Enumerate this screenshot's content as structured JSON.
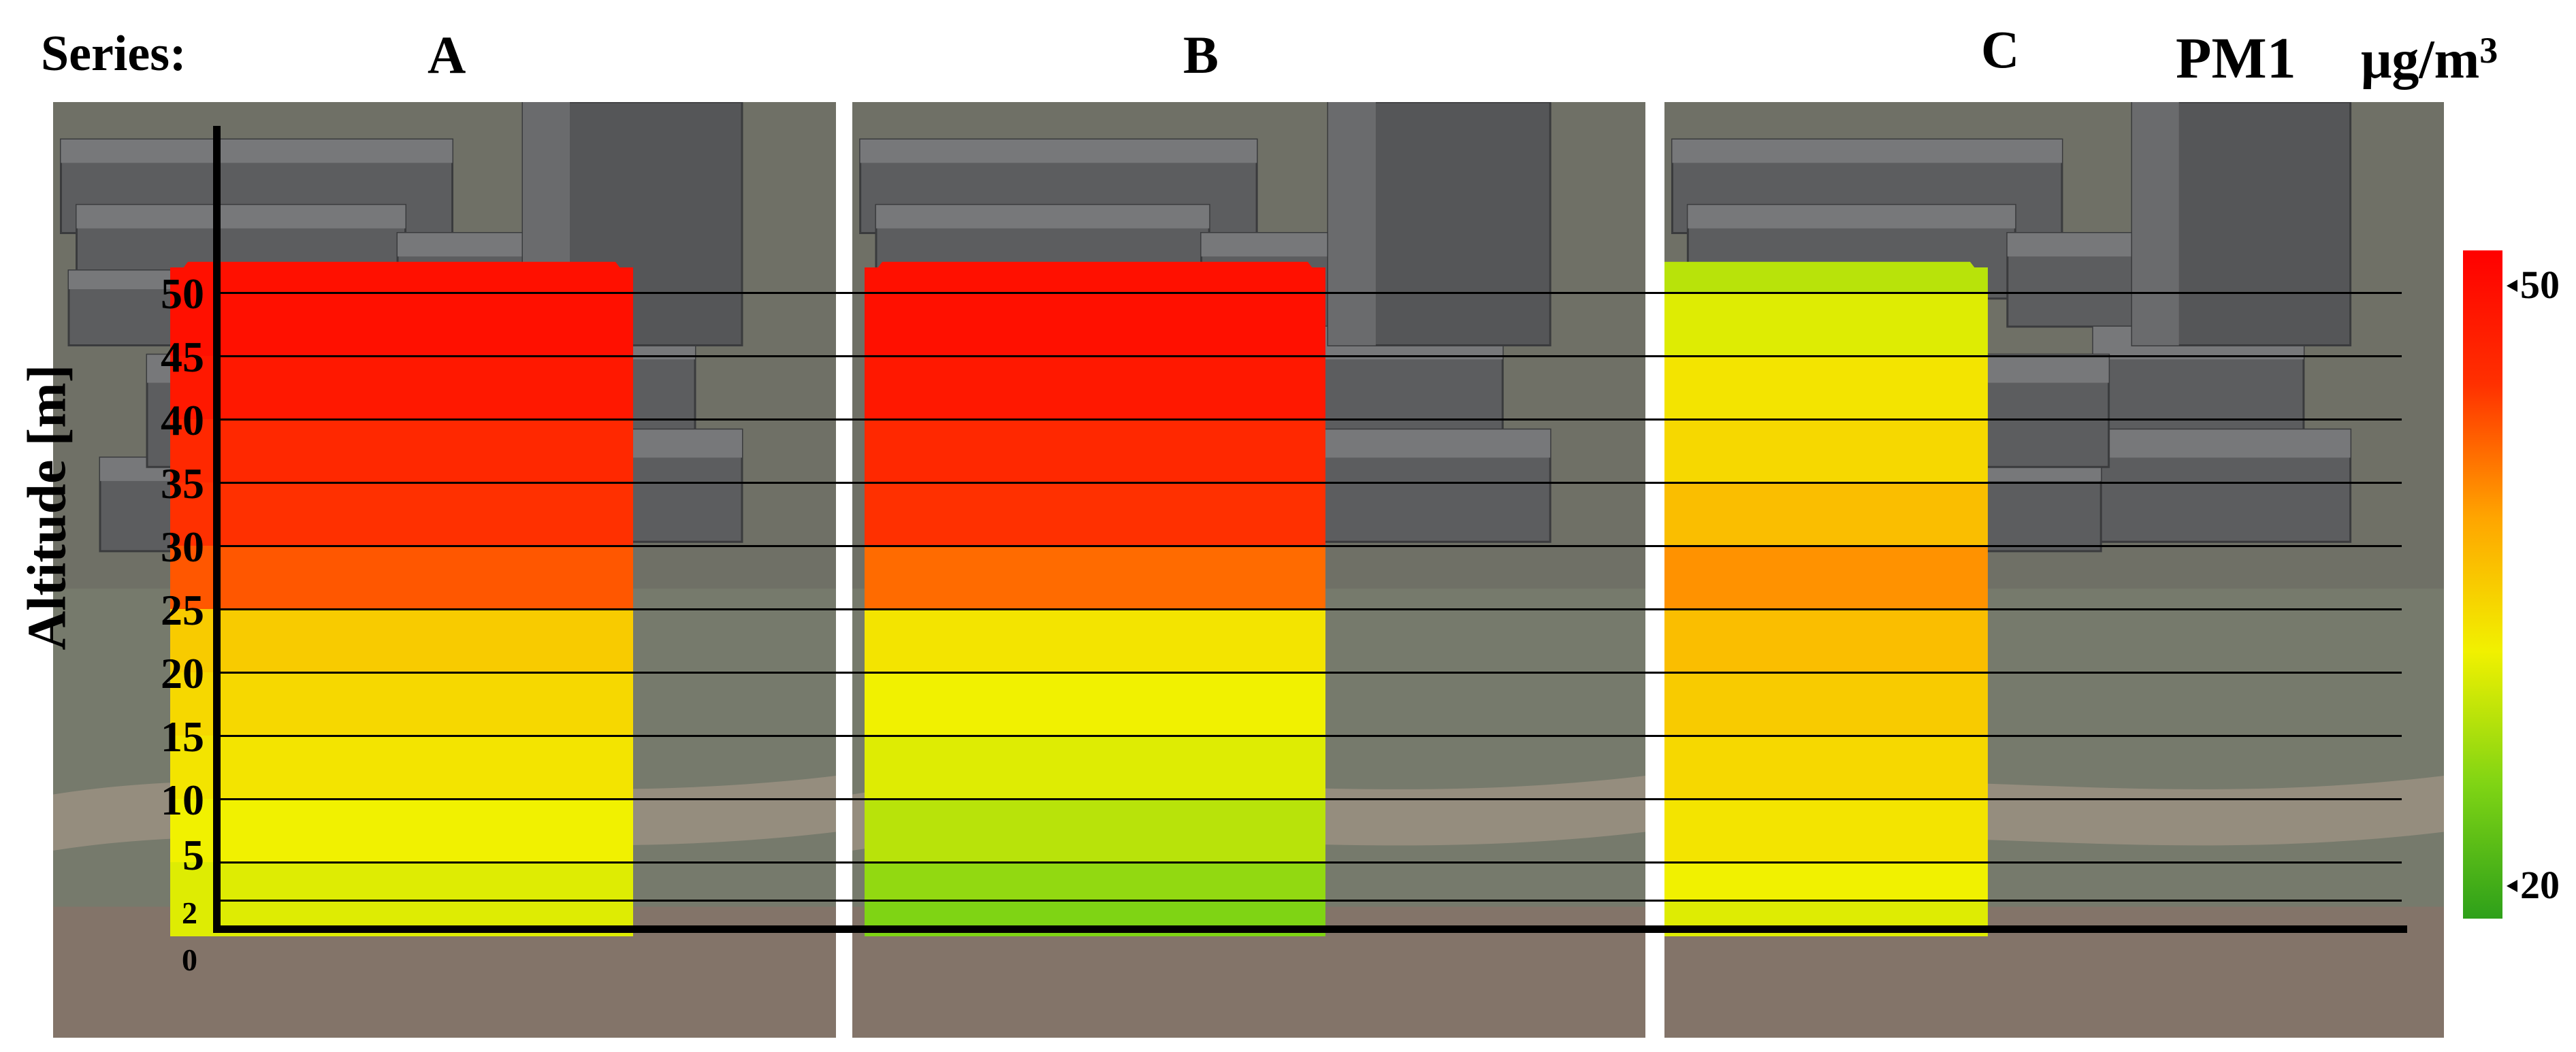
{
  "header": {
    "series_label": "Series:",
    "variable": "PM1",
    "unit_base": "μg/m",
    "unit_exp": "3"
  },
  "panels": [
    {
      "label": "A"
    },
    {
      "label": "B"
    },
    {
      "label": "C"
    }
  ],
  "chart_data": {
    "type": "heatmap",
    "ylabel": "Altitude [m]",
    "y_ticks": [
      0,
      2,
      5,
      10,
      15,
      20,
      25,
      30,
      35,
      40,
      45,
      50
    ],
    "ylim": [
      0,
      52
    ],
    "colorbar": {
      "min": 20,
      "max": 50,
      "ticks": [
        20,
        50
      ],
      "colors": [
        "#2ea01a",
        "#7fd414",
        "#f1f100",
        "#ffa500",
        "#ff3000",
        "#ff0000"
      ]
    },
    "series": [
      {
        "name": "A",
        "altitude_bands": [
          [
            0,
            2
          ],
          [
            2,
            5
          ],
          [
            5,
            10
          ],
          [
            10,
            15
          ],
          [
            15,
            20
          ],
          [
            20,
            25
          ],
          [
            25,
            30
          ],
          [
            30,
            35
          ],
          [
            35,
            40
          ],
          [
            40,
            45
          ],
          [
            45,
            50
          ],
          [
            50,
            52
          ]
        ],
        "values": [
          31,
          31,
          32,
          33,
          34,
          35,
          42,
          44,
          45,
          47,
          48,
          48
        ]
      },
      {
        "name": "B",
        "altitude_bands": [
          [
            0,
            2
          ],
          [
            2,
            5
          ],
          [
            5,
            10
          ],
          [
            10,
            15
          ],
          [
            15,
            20
          ],
          [
            20,
            25
          ],
          [
            25,
            30
          ],
          [
            30,
            35
          ],
          [
            35,
            40
          ],
          [
            40,
            45
          ],
          [
            45,
            50
          ],
          [
            50,
            52
          ]
        ],
        "values": [
          26,
          27,
          29,
          31,
          32,
          33,
          41,
          44,
          45,
          47,
          48,
          48
        ]
      },
      {
        "name": "C",
        "altitude_bands": [
          [
            0,
            2
          ],
          [
            2,
            5
          ],
          [
            5,
            10
          ],
          [
            10,
            15
          ],
          [
            15,
            20
          ],
          [
            20,
            25
          ],
          [
            25,
            30
          ],
          [
            30,
            35
          ],
          [
            35,
            40
          ],
          [
            40,
            45
          ],
          [
            45,
            50
          ],
          [
            50,
            52
          ]
        ],
        "values": [
          31,
          32,
          33,
          34,
          35,
          36,
          39,
          36,
          34,
          33,
          31,
          29
        ]
      }
    ]
  }
}
